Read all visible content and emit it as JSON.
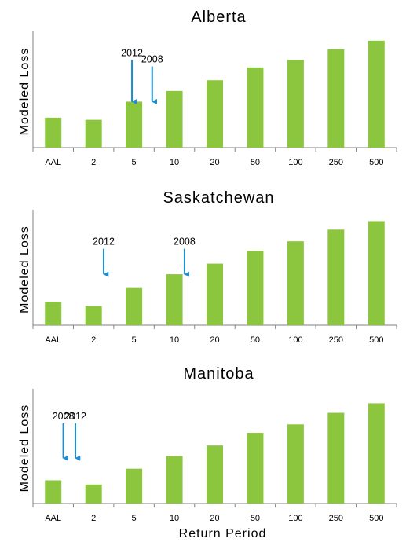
{
  "x_axis_label": "Return Period",
  "colors": {
    "bar": "#8cc63f",
    "arrow": "#1b8fd1",
    "axis": "#808080"
  },
  "chart_data": [
    {
      "type": "bar",
      "title": "Alberta",
      "ylabel": "Modeled Loss",
      "xlabel": "",
      "categories": [
        "AAL",
        "2",
        "5",
        "10",
        "20",
        "50",
        "100",
        "250",
        "500"
      ],
      "values": [
        0.28,
        0.26,
        0.43,
        0.53,
        0.63,
        0.75,
        0.82,
        0.92,
        1.0
      ],
      "ylim": [
        0,
        1.05
      ],
      "grid": false,
      "annotations": [
        {
          "text": "2012",
          "x": 2.45,
          "y_from": 0.82,
          "y_to": 0.43
        },
        {
          "text": "2008",
          "x": 2.95,
          "y_from": 0.76,
          "y_to": 0.43
        }
      ]
    },
    {
      "type": "bar",
      "title": "Saskatchewan",
      "ylabel": "Modeled Loss",
      "xlabel": "",
      "categories": [
        "AAL",
        "2",
        "5",
        "10",
        "20",
        "50",
        "100",
        "250",
        "500"
      ],
      "values": [
        0.22,
        0.18,
        0.35,
        0.48,
        0.58,
        0.7,
        0.79,
        0.9,
        0.98
      ],
      "ylim": [
        0,
        1.05
      ],
      "grid": false,
      "annotations": [
        {
          "text": "2012",
          "x": 1.75,
          "y_from": 0.72,
          "y_to": 0.48
        },
        {
          "text": "2008",
          "x": 3.75,
          "y_from": 0.72,
          "y_to": 0.48
        }
      ]
    },
    {
      "type": "bar",
      "title": "Manitoba",
      "ylabel": "Modeled Loss",
      "xlabel": "Return Period",
      "categories": [
        "AAL",
        "2",
        "5",
        "10",
        "20",
        "50",
        "100",
        "250",
        "500"
      ],
      "values": [
        0.22,
        0.18,
        0.33,
        0.45,
        0.55,
        0.67,
        0.75,
        0.86,
        0.95
      ],
      "ylim": [
        0,
        1.05
      ],
      "grid": false,
      "annotations": [
        {
          "text": "2008",
          "x": 0.75,
          "y_from": 0.76,
          "y_to": 0.43
        },
        {
          "text": "2012",
          "x": 1.05,
          "y_from": 0.76,
          "y_to": 0.43
        }
      ]
    }
  ]
}
